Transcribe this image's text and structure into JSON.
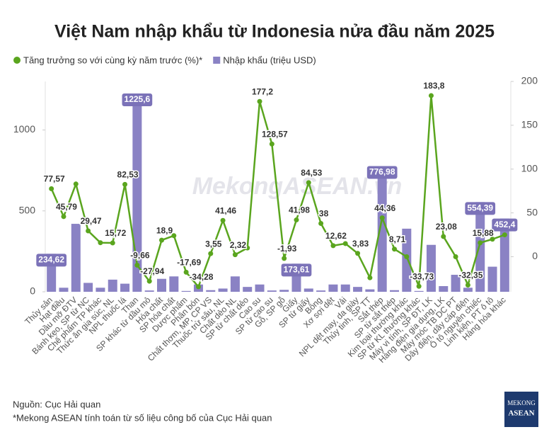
{
  "chart_data": {
    "type": "bar",
    "title": "Việt Nam nhập khẩu từ Indonesia nửa đầu năm 2025",
    "watermark": "MekongASEAN.vn",
    "source": "Nguồn: Cục Hải quan",
    "note": "*Mekong ASEAN tính toán từ số liệu công bố của Cục Hải quan",
    "logo": [
      "MEKONG",
      "ASEAN"
    ],
    "categories": [
      "Thủy sản",
      "Hạt điều",
      "Dầu mỡ ĐTV",
      "Bánh kẹo, SP từ NC",
      "Chế phẩm TP khác",
      "Thức ăn gia súc, NL",
      "NPL thuốc lá",
      "Than",
      "SP khác từ dầu mỏ",
      "Hóa chất",
      "SP hóa chất",
      "Dược phẩm",
      "Phân bón",
      "Chất thơm, MP, CP VS",
      "Thuốc trừ sâu, NL",
      "Chất dẻo NL",
      "SP từ chất dẻo",
      "Cao su",
      "SP từ cao su",
      "Gỗ, SP gỗ",
      "Giấy",
      "SP từ giấy",
      "Bông",
      "Xơ sợi dệt",
      "Vải",
      "NPL dệt may, da giày",
      "Thủy tinh, SP TT",
      "Sắt thép",
      "SP từ sắt thép",
      "Kim loại thường khác",
      "SP từ KL thường khác",
      "Máy vi tính, SP ĐT, LK",
      "Hàng điện gia dụng, LK",
      "Máy móc TB DC PT",
      "Dây điện, dây cáp điện",
      "Ô tô nguyên chiếc",
      "Linh kiện, PT ô tô",
      "Hàng hóa khác"
    ],
    "series": [
      {
        "name": "Tăng trưởng so với cùng kỳ năm trước (%)*",
        "type": "line",
        "axis": "y2",
        "color": "#5aa51e",
        "values": [
          77.57,
          45.79,
          83,
          29.47,
          16,
          15.72,
          82.53,
          -9.66,
          -27.94,
          18.9,
          24,
          -17.69,
          -34.28,
          3.55,
          41.46,
          2.32,
          10,
          177.2,
          128.57,
          -1.93,
          41.98,
          84.53,
          38,
          12.62,
          15,
          3.83,
          -24,
          44.36,
          8.71,
          0,
          -33.73,
          183.8,
          23.08,
          0,
          -32.35,
          15.88,
          20,
          25
        ],
        "value_labels": [
          "77,57",
          "45,79",
          null,
          "29,47",
          null,
          "15,72",
          "82,53",
          "-9,66",
          "-27,94",
          "18,9",
          null,
          "-17,69",
          "-34,28",
          "3,55",
          "41,46",
          "2,32",
          null,
          "177,2",
          "128,57",
          "-1,93",
          "41,98",
          "84,53",
          "38",
          "12,62",
          null,
          "3,83",
          null,
          "44,36",
          "8,71",
          null,
          "-33,73",
          "183,8",
          "23,08",
          null,
          "-32,35",
          "15,88",
          null,
          null
        ]
      },
      {
        "name": "Nhập khẩu (triệu USD)",
        "type": "bar",
        "color": "#8a82c4",
        "values": [
          234.62,
          25,
          420,
          55,
          25,
          75,
          50,
          1225.6,
          8,
          80,
          95,
          5,
          45,
          10,
          20,
          95,
          30,
          45,
          8,
          12,
          173.61,
          20,
          8,
          45,
          45,
          30,
          15,
          776.98,
          10,
          390,
          5,
          290,
          35,
          105,
          25,
          554.39,
          155,
          452.4
        ],
        "value_labels": [
          "234,62",
          null,
          null,
          null,
          null,
          null,
          null,
          "1225,6",
          null,
          null,
          null,
          null,
          null,
          null,
          null,
          null,
          null,
          null,
          null,
          null,
          "173,61",
          null,
          null,
          null,
          null,
          null,
          null,
          "776,98",
          null,
          null,
          null,
          null,
          null,
          null,
          null,
          "554,39",
          null,
          "452,4"
        ]
      }
    ],
    "ylim": [
      0,
      1300
    ],
    "yticks": [
      0,
      500,
      1000
    ],
    "y2lim": [
      -40,
      200
    ],
    "y2ticks": [
      0,
      50,
      100,
      150,
      200
    ]
  }
}
